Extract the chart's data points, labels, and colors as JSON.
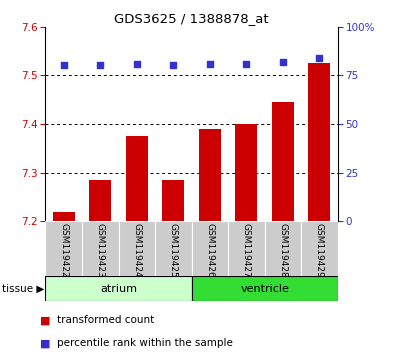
{
  "title": "GDS3625 / 1388878_at",
  "samples": [
    "GSM119422",
    "GSM119423",
    "GSM119424",
    "GSM119425",
    "GSM119426",
    "GSM119427",
    "GSM119428",
    "GSM119429"
  ],
  "bar_values": [
    7.22,
    7.285,
    7.375,
    7.285,
    7.39,
    7.4,
    7.445,
    7.525
  ],
  "dot_values": [
    80,
    80,
    81,
    80,
    81,
    81,
    82,
    84
  ],
  "ylim_left": [
    7.2,
    7.6
  ],
  "ylim_right": [
    0,
    100
  ],
  "yticks_left": [
    7.2,
    7.3,
    7.4,
    7.5,
    7.6
  ],
  "yticks_right": [
    0,
    25,
    50,
    75,
    100
  ],
  "bar_color": "#cc0000",
  "dot_color": "#3333cc",
  "bar_width": 0.6,
  "tissue_groups": [
    {
      "label": "atrium",
      "start": 0,
      "end": 4,
      "color": "#ccffcc"
    },
    {
      "label": "ventricle",
      "start": 4,
      "end": 8,
      "color": "#33dd33"
    }
  ],
  "tissue_label": "tissue",
  "legend_bar_label": "transformed count",
  "legend_dot_label": "percentile rank within the sample",
  "bar_label_color": "#cc0000",
  "dot_label_color": "#3333cc",
  "xticklabel_bg": "#cccccc",
  "grid_dotted_vals": [
    7.3,
    7.4,
    7.5
  ]
}
